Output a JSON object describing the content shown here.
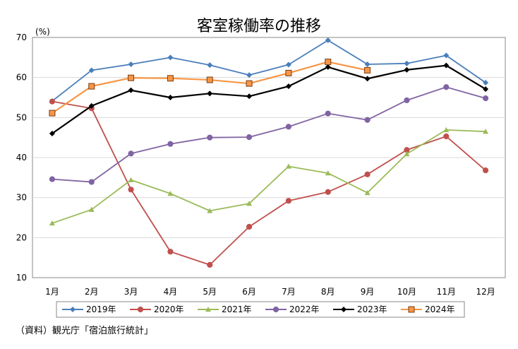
{
  "chart_data": {
    "type": "line",
    "title": "客室稼働率の推移",
    "ylabel": "(%)",
    "xlabel": "",
    "categories": [
      "1月",
      "2月",
      "3月",
      "4月",
      "5月",
      "6月",
      "7月",
      "8月",
      "9月",
      "10月",
      "11月",
      "12月"
    ],
    "ylim": [
      10,
      70
    ],
    "yticks": [
      10,
      20,
      30,
      40,
      50,
      60,
      70
    ],
    "grid": true,
    "legend_position": "bottom",
    "series": [
      {
        "name": "2019年",
        "color": "#4A7EBB",
        "marker": "diamond",
        "values": [
          54.1,
          61.8,
          63.3,
          65.0,
          63.1,
          60.6,
          63.2,
          69.3,
          63.3,
          63.5,
          65.5,
          58.7
        ]
      },
      {
        "name": "2020年",
        "color": "#C0504D",
        "marker": "circle",
        "values": [
          54.0,
          52.3,
          32.0,
          16.5,
          13.2,
          22.7,
          29.2,
          31.4,
          35.8,
          41.9,
          45.3,
          36.8
        ]
      },
      {
        "name": "2021年",
        "color": "#9BBB59",
        "marker": "triangle",
        "values": [
          23.6,
          27.0,
          34.4,
          31.0,
          26.7,
          28.5,
          37.8,
          36.1,
          31.2,
          40.9,
          46.9,
          46.5
        ]
      },
      {
        "name": "2022年",
        "color": "#8064A2",
        "marker": "circle",
        "values": [
          34.6,
          33.9,
          41.0,
          43.4,
          45.0,
          45.1,
          47.7,
          51.0,
          49.4,
          54.3,
          57.6,
          54.8
        ]
      },
      {
        "name": "2023年",
        "color": "#000000",
        "marker": "diamond",
        "values": [
          46.0,
          52.9,
          56.8,
          55.0,
          56.0,
          55.3,
          57.8,
          62.6,
          59.7,
          61.9,
          63.0,
          57.1
        ]
      },
      {
        "name": "2024年",
        "color": "#F79646",
        "marker": "square",
        "values": [
          51.1,
          57.8,
          59.9,
          59.8,
          59.4,
          58.5,
          61.1,
          63.9,
          61.8,
          null,
          null,
          null
        ]
      }
    ]
  },
  "source": "（資料）観光庁「宿泊旅行統計」"
}
